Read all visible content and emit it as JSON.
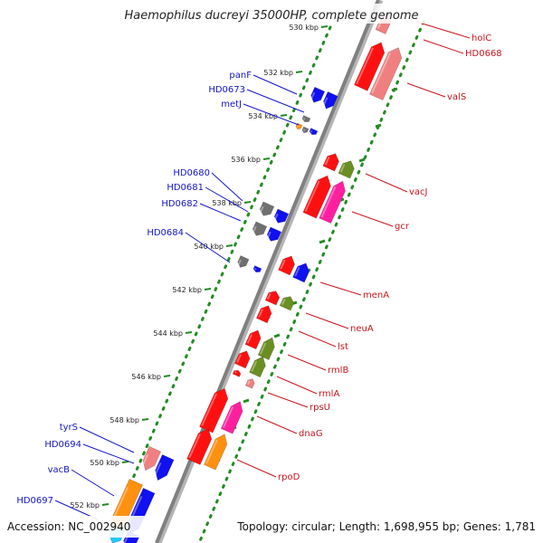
{
  "title": "Haemophilus ducreyi 35000HP, complete genome",
  "accession": "Accession: NC_002940",
  "topology": "Topology: circular; Length: 1,698,955 bp; Genes: 1,781",
  "kbp_ticks": [
    "530 kbp",
    "532 kbp",
    "534 kbp",
    "536 kbp",
    "538 kbp",
    "540 kbp",
    "542 kbp",
    "544 kbp",
    "546 kbp",
    "548 kbp",
    "550 kbp",
    "552 kbp"
  ],
  "genes_reverse": [
    "panF",
    "HD0673",
    "metJ",
    "HD0680",
    "HD0681",
    "HD0682",
    "HD0684",
    "tyrS",
    "HD0694",
    "vacB",
    "HD0697"
  ],
  "genes_forward": [
    "holC",
    "HD0668",
    "valS",
    "vacJ",
    "gcr",
    "menA",
    "neuA",
    "lst",
    "rmlB",
    "rmlA",
    "rpsU",
    "dnaG",
    "rpoD"
  ],
  "colors": {
    "backbone": "#808080",
    "blue": "#1010f0",
    "red": "#ff1010",
    "pink": "#ff20a0",
    "salmon": "#f08080",
    "olive": "#6b8e23",
    "gray": "#707070",
    "orange": "#ff9010",
    "label_left": "#1414c8",
    "label_right": "#c8141e",
    "dots": "#228b22"
  }
}
